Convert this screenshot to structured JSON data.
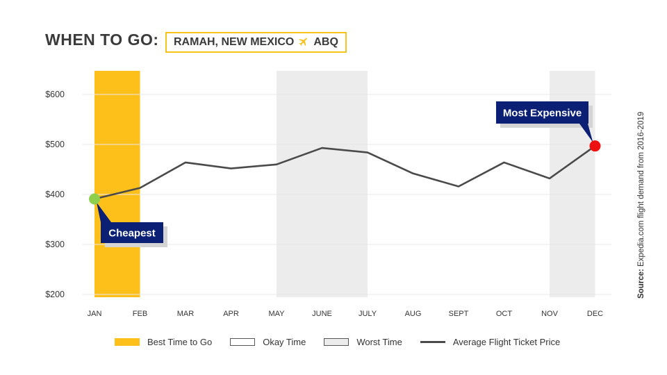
{
  "header": {
    "title": "WHEN TO GO:",
    "location": "RAMAH, NEW MEXICO",
    "airport": "ABQ",
    "plane_icon": "airplane-icon"
  },
  "source": {
    "label": "Source:",
    "text": "Expedia.com flight demand from 2016-2019"
  },
  "legend": {
    "best": "Best Time to Go",
    "okay": "Okay Time",
    "worst": "Worst Time",
    "price": "Average Flight Ticket Price"
  },
  "colors": {
    "best": "#fdc01a",
    "worst": "#ececec",
    "line": "#4a4a4a",
    "cheapest_marker": "#8fcf4e",
    "expensive_marker": "#ee1111",
    "callout_bg": "#0b1f74",
    "callout_shadow": "#d4d4d4",
    "title_box_border": "#f7c21b"
  },
  "chart_data": {
    "type": "line",
    "categories": [
      "JAN",
      "FEB",
      "MAR",
      "APR",
      "MAY",
      "JUNE",
      "JULY",
      "AUG",
      "SEPT",
      "OCT",
      "NOV",
      "DEC"
    ],
    "series": [
      {
        "name": "Average Flight Ticket Price",
        "values": [
          391,
          413,
          464,
          452,
          460,
          493,
          484,
          442,
          416,
          464,
          432,
          497
        ]
      }
    ],
    "yticks": [
      "$600",
      "$500",
      "$400",
      "$300",
      "$200"
    ],
    "ytick_values": [
      600,
      500,
      400,
      300,
      200
    ],
    "ylim": [
      200,
      600
    ],
    "grid": true,
    "bands": [
      {
        "type": "best",
        "from": "JAN",
        "to": "FEB"
      },
      {
        "type": "worst",
        "from": "MAY",
        "to": "JULY"
      },
      {
        "type": "worst",
        "from": "NOV",
        "to": "DEC"
      }
    ],
    "annotations": [
      {
        "label": "Cheapest",
        "category": "JAN",
        "value": 391
      },
      {
        "label": "Most Expensive",
        "category": "DEC",
        "value": 497
      }
    ]
  }
}
